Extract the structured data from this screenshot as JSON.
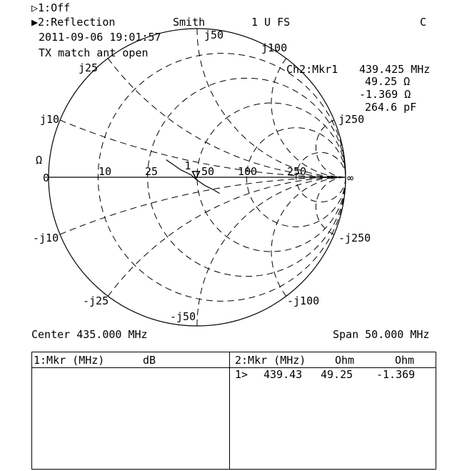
{
  "header": {
    "ch1": "▷1:Off",
    "ch2": "▶2:Reflection",
    "format": "Smith",
    "scale": "1 U FS",
    "flag": "C",
    "timestamp": "2011-09-06 19:01:57",
    "note": "TX match ant open"
  },
  "marker_readout": {
    "title": "Ch2:Mkr1",
    "freq": "439.425 MHz",
    "resistance": "49.25 Ω",
    "reactance": "-1.369 Ω",
    "capacitance": "264.6 pF"
  },
  "footer": {
    "center": "Center 435.000 MHz",
    "span": "Span 50.000 MHz"
  },
  "table": {
    "left_header": [
      "1:Mkr (MHz)",
      "dB"
    ],
    "right_header": [
      "2:Mkr (MHz)",
      "Ohm",
      "Ohm"
    ],
    "right_rows": [
      [
        "1>",
        "439.43",
        "49.25",
        "-1.369"
      ]
    ]
  },
  "chart_data": {
    "type": "smith",
    "z0_label": "Ω",
    "resistance_labels": [
      "0",
      "10",
      "25",
      "50",
      "100",
      "250",
      "∞"
    ],
    "resistance_values": [
      10,
      25,
      50,
      100,
      250
    ],
    "reactance_labels": [
      "j10",
      "j25",
      "j50",
      "j100",
      "j250",
      "-j10",
      "-j25",
      "-j50",
      "-j100",
      "-j250"
    ],
    "reactance_values": [
      10,
      25,
      50,
      100,
      250
    ],
    "z0": 50,
    "trace": [
      [
        32,
        8
      ],
      [
        40,
        4
      ],
      [
        46,
        1.5
      ],
      [
        49.25,
        -1.369
      ],
      [
        55,
        -6
      ],
      [
        62,
        -11
      ],
      [
        66,
        -15
      ]
    ],
    "markers": [
      {
        "label": "1",
        "r": 49.25,
        "x": -1.369
      }
    ]
  }
}
